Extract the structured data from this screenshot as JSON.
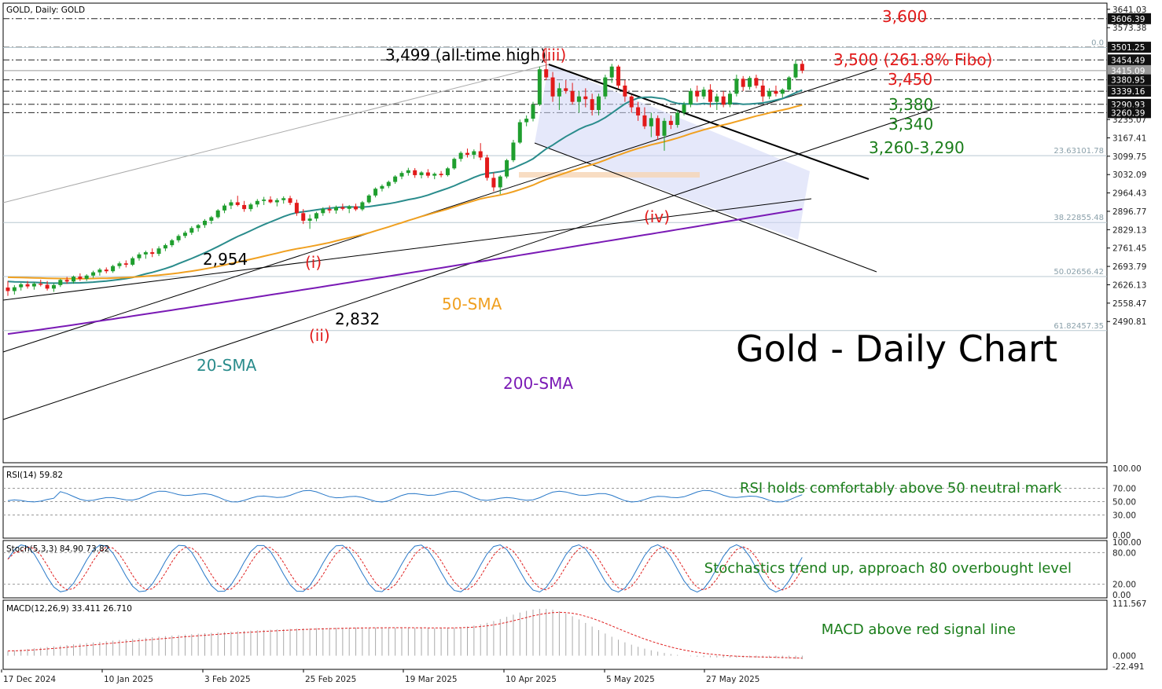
{
  "header": {
    "title": "GOLD, Daily:  GOLD"
  },
  "main_title": "Gold - Daily Chart",
  "colors": {
    "bull": "#1f9e2e",
    "bear": "#e21a1a",
    "sma20": "#2a8c8c",
    "sma50": "#f0a020",
    "sma200": "#7a1ab5",
    "green_text": "#1a7d1a",
    "red_text": "#e21a1a",
    "rsi": "#2878c8",
    "signal": "#e02020"
  },
  "chart_data": [
    {
      "type": "candlestick",
      "title": "GOLD, Daily:  GOLD",
      "x_ticks": [
        "17 Dec 2024",
        "10 Jan 2025",
        "3 Feb 2025",
        "25 Feb 2025",
        "19 Mar 2025",
        "10 Apr 2025",
        "5 May 2025",
        "27 May 2025"
      ],
      "y_ticks": [
        "3641.03",
        "3573.38",
        "3235.07",
        "3167.41",
        "3099.75",
        "3032.09",
        "2964.43",
        "2896.77",
        "2829.13",
        "2761.45",
        "2693.79",
        "2626.13",
        "2558.47",
        "2490.81"
      ],
      "price_tags": [
        {
          "label": "3606.39",
          "value": 3606.39,
          "style": "dark"
        },
        {
          "label": "3501.25",
          "value": 3501.25,
          "style": "dark"
        },
        {
          "label": "3454.49",
          "value": 3454.49,
          "style": "dark"
        },
        {
          "label": "3415.09",
          "value": 3415.09,
          "style": "grey"
        },
        {
          "label": "3380.95",
          "value": 3380.95,
          "style": "dark"
        },
        {
          "label": "3339.16",
          "value": 3339.16,
          "style": "dark"
        },
        {
          "label": "3290.93",
          "value": 3290.93,
          "style": "dark"
        },
        {
          "label": "3260.39",
          "value": 3260.39,
          "style": "dark"
        }
      ],
      "fib_levels": [
        {
          "label": "0.0",
          "value": 3500
        },
        {
          "label": "23.63101.78",
          "value": 3101.78
        },
        {
          "label": "38.22855.48",
          "value": 2855.48
        },
        {
          "label": "50.02656.42",
          "value": 2656.42
        },
        {
          "label": "61.82457.35",
          "value": 2457.35
        }
      ],
      "candles": [
        [
          2616,
          2640,
          2585,
          2603
        ],
        [
          2603,
          2625,
          2590,
          2617
        ],
        [
          2617,
          2633,
          2605,
          2628
        ],
        [
          2628,
          2640,
          2612,
          2620
        ],
        [
          2620,
          2636,
          2608,
          2630
        ],
        [
          2630,
          2645,
          2620,
          2626
        ],
        [
          2626,
          2640,
          2605,
          2612
        ],
        [
          2612,
          2632,
          2600,
          2625
        ],
        [
          2625,
          2648,
          2618,
          2644
        ],
        [
          2644,
          2655,
          2630,
          2638
        ],
        [
          2638,
          2660,
          2630,
          2656
        ],
        [
          2656,
          2668,
          2640,
          2648
        ],
        [
          2648,
          2665,
          2640,
          2660
        ],
        [
          2660,
          2678,
          2652,
          2672
        ],
        [
          2672,
          2688,
          2660,
          2682
        ],
        [
          2682,
          2690,
          2668,
          2676
        ],
        [
          2676,
          2700,
          2670,
          2695
        ],
        [
          2695,
          2712,
          2686,
          2705
        ],
        [
          2705,
          2716,
          2690,
          2700
        ],
        [
          2700,
          2730,
          2695,
          2724
        ],
        [
          2724,
          2745,
          2715,
          2738
        ],
        [
          2738,
          2752,
          2722,
          2746
        ],
        [
          2746,
          2760,
          2728,
          2740
        ],
        [
          2740,
          2768,
          2732,
          2760
        ],
        [
          2760,
          2778,
          2750,
          2772
        ],
        [
          2772,
          2795,
          2765,
          2790
        ],
        [
          2790,
          2812,
          2782,
          2806
        ],
        [
          2806,
          2825,
          2798,
          2818
        ],
        [
          2818,
          2842,
          2810,
          2835
        ],
        [
          2835,
          2850,
          2822,
          2846
        ],
        [
          2846,
          2868,
          2836,
          2862
        ],
        [
          2862,
          2880,
          2850,
          2875
        ],
        [
          2875,
          2905,
          2870,
          2900
        ],
        [
          2900,
          2925,
          2890,
          2918
        ],
        [
          2918,
          2940,
          2905,
          2930
        ],
        [
          2930,
          2954,
          2915,
          2920
        ],
        [
          2920,
          2935,
          2895,
          2905
        ],
        [
          2905,
          2928,
          2896,
          2922
        ],
        [
          2922,
          2942,
          2912,
          2935
        ],
        [
          2935,
          2950,
          2920,
          2940
        ],
        [
          2940,
          2952,
          2926,
          2930
        ],
        [
          2930,
          2945,
          2915,
          2938
        ],
        [
          2938,
          2952,
          2925,
          2945
        ],
        [
          2945,
          2954,
          2920,
          2928
        ],
        [
          2928,
          2940,
          2880,
          2890
        ],
        [
          2890,
          2905,
          2850,
          2862
        ],
        [
          2862,
          2885,
          2832,
          2870
        ],
        [
          2870,
          2895,
          2860,
          2890
        ],
        [
          2890,
          2912,
          2880,
          2905
        ],
        [
          2905,
          2918,
          2890,
          2900
        ],
        [
          2900,
          2918,
          2888,
          2912
        ],
        [
          2912,
          2925,
          2900,
          2906
        ],
        [
          2906,
          2920,
          2890,
          2915
        ],
        [
          2915,
          2925,
          2898,
          2904
        ],
        [
          2904,
          2935,
          2898,
          2930
        ],
        [
          2930,
          2960,
          2925,
          2955
        ],
        [
          2955,
          2985,
          2948,
          2980
        ],
        [
          2980,
          2996,
          2970,
          2990
        ],
        [
          2990,
          3010,
          2982,
          3005
        ],
        [
          3005,
          3030,
          2998,
          3025
        ],
        [
          3025,
          3045,
          3015,
          3038
        ],
        [
          3038,
          3057,
          3028,
          3048
        ],
        [
          3048,
          3056,
          3020,
          3030
        ],
        [
          3030,
          3045,
          3018,
          3040
        ],
        [
          3040,
          3052,
          3020,
          3028
        ],
        [
          3028,
          3040,
          3015,
          3035
        ],
        [
          3035,
          3045,
          3022,
          3030
        ],
        [
          3030,
          3060,
          3025,
          3055
        ],
        [
          3055,
          3095,
          3050,
          3090
        ],
        [
          3090,
          3118,
          3080,
          3112
        ],
        [
          3112,
          3128,
          3095,
          3105
        ],
        [
          3105,
          3125,
          3090,
          3118
        ],
        [
          3118,
          3148,
          3085,
          3095
        ],
        [
          3095,
          3105,
          3010,
          3020
        ],
        [
          3020,
          3040,
          2970,
          2985
        ],
        [
          2985,
          3030,
          2960,
          3025
        ],
        [
          3025,
          3090,
          3018,
          3085
        ],
        [
          3085,
          3160,
          3078,
          3150
        ],
        [
          3150,
          3235,
          3145,
          3225
        ],
        [
          3225,
          3250,
          3210,
          3238
        ],
        [
          3238,
          3300,
          3228,
          3290
        ],
        [
          3290,
          3430,
          3285,
          3420
        ],
        [
          3420,
          3499,
          3380,
          3390
        ],
        [
          3390,
          3410,
          3300,
          3320
        ],
        [
          3320,
          3370,
          3270,
          3350
        ],
        [
          3350,
          3380,
          3330,
          3340
        ],
        [
          3340,
          3370,
          3290,
          3300
        ],
        [
          3300,
          3340,
          3260,
          3320
        ],
        [
          3320,
          3350,
          3280,
          3310
        ],
        [
          3310,
          3330,
          3250,
          3270
        ],
        [
          3270,
          3330,
          3250,
          3320
        ],
        [
          3320,
          3400,
          3310,
          3390
        ],
        [
          3390,
          3440,
          3370,
          3430
        ],
        [
          3430,
          3436,
          3350,
          3360
        ],
        [
          3360,
          3380,
          3300,
          3320
        ],
        [
          3320,
          3325,
          3260,
          3280
        ],
        [
          3280,
          3300,
          3230,
          3250
        ],
        [
          3250,
          3280,
          3200,
          3210
        ],
        [
          3210,
          3260,
          3170,
          3240
        ],
        [
          3240,
          3250,
          3160,
          3175
        ],
        [
          3175,
          3240,
          3120,
          3230
        ],
        [
          3230,
          3250,
          3200,
          3215
        ],
        [
          3215,
          3270,
          3205,
          3260
        ],
        [
          3260,
          3300,
          3250,
          3290
        ],
        [
          3290,
          3350,
          3280,
          3340
        ],
        [
          3340,
          3360,
          3300,
          3320
        ],
        [
          3320,
          3355,
          3310,
          3345
        ],
        [
          3345,
          3365,
          3280,
          3300
        ],
        [
          3300,
          3330,
          3270,
          3320
        ],
        [
          3320,
          3340,
          3280,
          3290
        ],
        [
          3290,
          3340,
          3280,
          3330
        ],
        [
          3330,
          3400,
          3320,
          3385
        ],
        [
          3385,
          3395,
          3340,
          3355
        ],
        [
          3355,
          3395,
          3345,
          3388
        ],
        [
          3388,
          3400,
          3350,
          3360
        ],
        [
          3360,
          3380,
          3300,
          3320
        ],
        [
          3320,
          3350,
          3310,
          3340
        ],
        [
          3340,
          3360,
          3320,
          3330
        ],
        [
          3330,
          3350,
          3315,
          3345
        ],
        [
          3345,
          3395,
          3340,
          3390
        ],
        [
          3390,
          3455,
          3385,
          3440
        ],
        [
          3440,
          3452,
          3405,
          3415
        ]
      ],
      "lines": [
        {
          "name": "20-SMA"
        },
        {
          "name": "50-SMA"
        },
        {
          "name": "200-SMA"
        }
      ],
      "annotations": {
        "ath": "3,499 (all-time high)",
        "wave_iii": "(iii)",
        "wave_i": "(i)",
        "wave_ii": "(ii)",
        "wave_iv": "(iv)",
        "lvl_2954": "2,954",
        "lvl_2832": "2,832",
        "lvl_3600": "3,600",
        "lvl_3500": "3,500 (261.8% Fibo)",
        "lvl_3450": "3,450",
        "lvl_3380": "3,380",
        "lvl_3340": "3,340",
        "lvl_3260": "3,260-3,290",
        "sma20": "20-SMA",
        "sma50": "50-SMA",
        "sma200": "200-SMA"
      }
    },
    {
      "type": "line",
      "title": "RSI(14) 59.82",
      "series": [
        {
          "name": "RSI(14)"
        }
      ],
      "levels": [
        30,
        50,
        70
      ],
      "y_ticks": [
        "100.00",
        "70.00",
        "50.00",
        "30.00",
        "0.00"
      ],
      "note": "RSI holds comfortably above 50 neutral mark"
    },
    {
      "type": "line",
      "title": "Stoch(5,3,3) 84.90 73.82",
      "series": [
        {
          "name": "%K"
        },
        {
          "name": "%D"
        }
      ],
      "levels": [
        20,
        80
      ],
      "y_ticks": [
        "100.00",
        "80.00",
        "20.00",
        "0.00"
      ],
      "note": "Stochastics trend up, approach 80 overbought level"
    },
    {
      "type": "bar",
      "title": "MACD(12,26,9) 33.411 26.710",
      "series": [
        {
          "name": "MACD"
        },
        {
          "name": "Signal"
        }
      ],
      "y_ticks": [
        "111.567",
        "0.000",
        "-22.491"
      ],
      "note": "MACD above red signal line"
    }
  ]
}
